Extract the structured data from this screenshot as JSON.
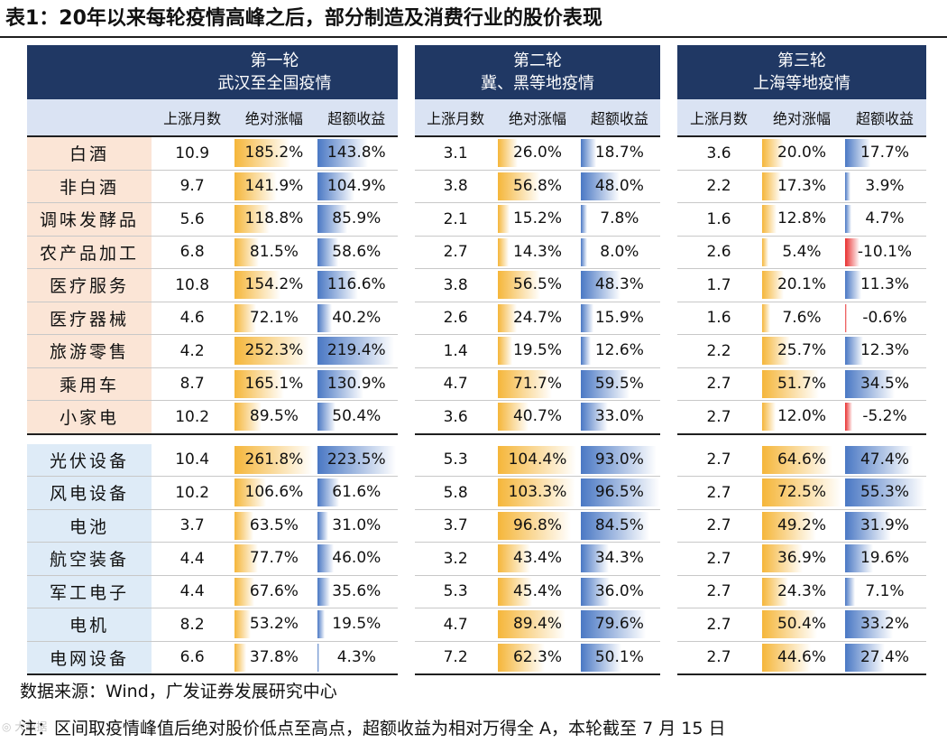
{
  "title": "表1：20年以来每轮疫情高峰之后，部分制造及消费行业的股价表现",
  "col_headers": [
    "上涨月数",
    "绝对涨幅",
    "超额收益"
  ],
  "rounds": [
    {
      "name": "第一轮",
      "desc": "武汉至全国疫情"
    },
    {
      "name": "第二轮",
      "desc": "冀、黑等地疫情"
    },
    {
      "name": "第三轮",
      "desc": "上海等地疫情"
    }
  ],
  "groups": [
    {
      "rows": [
        {
          "label": "白酒",
          "rounds": [
            [
              "10.9",
              "185.2%",
              "143.8%"
            ],
            [
              "3.1",
              "26.0%",
              "18.7%"
            ],
            [
              "3.6",
              "20.0%",
              "17.7%"
            ]
          ]
        },
        {
          "label": "非白酒",
          "rounds": [
            [
              "9.7",
              "141.9%",
              "104.9%"
            ],
            [
              "3.8",
              "56.8%",
              "48.0%"
            ],
            [
              "2.2",
              "17.3%",
              "3.9%"
            ]
          ]
        },
        {
          "label": "调味发酵品",
          "rounds": [
            [
              "5.6",
              "118.8%",
              "85.9%"
            ],
            [
              "2.1",
              "15.2%",
              "7.8%"
            ],
            [
              "1.6",
              "12.8%",
              "4.7%"
            ]
          ]
        },
        {
          "label": "农产品加工",
          "rounds": [
            [
              "6.8",
              "81.5%",
              "58.6%"
            ],
            [
              "2.7",
              "14.3%",
              "8.0%"
            ],
            [
              "2.6",
              "5.4%",
              "-10.1%"
            ]
          ]
        },
        {
          "label": "医疗服务",
          "rounds": [
            [
              "10.8",
              "154.2%",
              "116.6%"
            ],
            [
              "3.8",
              "56.5%",
              "48.3%"
            ],
            [
              "1.7",
              "20.1%",
              "11.3%"
            ]
          ]
        },
        {
          "label": "医疗器械",
          "rounds": [
            [
              "4.6",
              "72.1%",
              "40.2%"
            ],
            [
              "2.6",
              "24.7%",
              "15.9%"
            ],
            [
              "1.6",
              "7.6%",
              "-0.6%"
            ]
          ]
        },
        {
          "label": "旅游零售",
          "rounds": [
            [
              "4.2",
              "252.3%",
              "219.4%"
            ],
            [
              "1.4",
              "19.5%",
              "12.6%"
            ],
            [
              "2.2",
              "25.7%",
              "12.3%"
            ]
          ]
        },
        {
          "label": "乘用车",
          "rounds": [
            [
              "8.7",
              "165.1%",
              "130.9%"
            ],
            [
              "4.7",
              "71.7%",
              "59.5%"
            ],
            [
              "2.7",
              "51.7%",
              "34.5%"
            ]
          ]
        },
        {
          "label": "小家电",
          "rounds": [
            [
              "10.2",
              "89.5%",
              "50.4%"
            ],
            [
              "3.6",
              "40.7%",
              "33.0%"
            ],
            [
              "2.7",
              "12.0%",
              "-5.2%"
            ]
          ]
        }
      ]
    },
    {
      "rows": [
        {
          "label": "光伏设备",
          "rounds": [
            [
              "10.4",
              "261.8%",
              "223.5%"
            ],
            [
              "5.3",
              "104.4%",
              "93.0%"
            ],
            [
              "2.7",
              "64.6%",
              "47.4%"
            ]
          ]
        },
        {
          "label": "风电设备",
          "rounds": [
            [
              "10.2",
              "106.6%",
              "61.6%"
            ],
            [
              "5.8",
              "103.3%",
              "96.5%"
            ],
            [
              "2.7",
              "72.5%",
              "55.3%"
            ]
          ]
        },
        {
          "label": "电池",
          "rounds": [
            [
              "3.7",
              "63.5%",
              "31.0%"
            ],
            [
              "3.7",
              "96.8%",
              "84.5%"
            ],
            [
              "2.7",
              "49.2%",
              "31.9%"
            ]
          ]
        },
        {
          "label": "航空装备",
          "rounds": [
            [
              "4.4",
              "77.7%",
              "46.0%"
            ],
            [
              "3.2",
              "43.4%",
              "34.3%"
            ],
            [
              "2.7",
              "36.9%",
              "19.6%"
            ]
          ]
        },
        {
          "label": "军工电子",
          "rounds": [
            [
              "4.4",
              "67.6%",
              "35.6%"
            ],
            [
              "5.3",
              "45.4%",
              "36.0%"
            ],
            [
              "2.7",
              "24.3%",
              "7.1%"
            ]
          ]
        },
        {
          "label": "电机",
          "rounds": [
            [
              "8.2",
              "53.2%",
              "19.5%"
            ],
            [
              "4.7",
              "89.4%",
              "79.6%"
            ],
            [
              "2.7",
              "50.4%",
              "33.2%"
            ]
          ]
        },
        {
          "label": "电网设备",
          "rounds": [
            [
              "6.6",
              "37.8%",
              "4.3%"
            ],
            [
              "7.2",
              "62.3%",
              "50.1%"
            ],
            [
              "2.7",
              "44.6%",
              "27.4%"
            ]
          ]
        }
      ]
    }
  ],
  "source": "数据来源：Wind，广发证券发展研究中心",
  "note": "注：区间取疫情峰值后绝对股价低点至高点，超额收益为相对万得全 A，本轮截至 7 月 15 日",
  "watermark": "© 大数据",
  "colors": {
    "header_bg": "#203864",
    "subheader_bg": "#dae3f3",
    "consumer_label_bg": "#fbe5d6",
    "manufacturing_label_bg": "#deebf7",
    "abs_bar": "#f5b63a",
    "excess_bar": "#4a78c4",
    "neg_bar": "#e83030"
  }
}
